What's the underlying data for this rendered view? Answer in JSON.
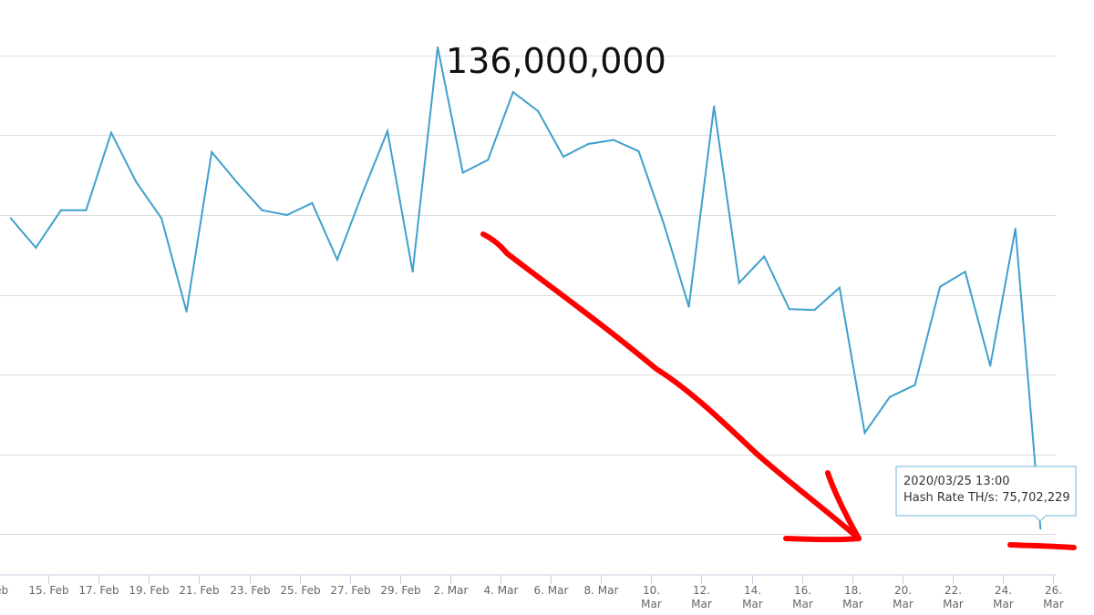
{
  "annotation": {
    "peak_label": "136,000,000"
  },
  "tooltip": {
    "date": "2020/03/25 13:00",
    "series_label": "Hash Rate TH/s",
    "value_text": "75,702,229"
  },
  "colors": {
    "line": "#3fa0cc",
    "grid": "#dcdcdc",
    "marker": "#ff0000",
    "tooltip_border": "#6fb6d8"
  },
  "chart_data": {
    "type": "line",
    "title": "",
    "xlabel": "",
    "ylabel": "",
    "x_ticks": [
      "Feb",
      "15. Feb",
      "17. Feb",
      "19. Feb",
      "21. Feb",
      "23. Feb",
      "25. Feb",
      "27. Feb",
      "29. Feb",
      "2. Mar",
      "4. Mar",
      "6. Mar",
      "8. Mar",
      "10. Mar",
      "12. Mar",
      "14. Mar",
      "16. Mar",
      "18. Mar",
      "20. Mar",
      "22. Mar",
      "24. Mar",
      "26. Mar"
    ],
    "x_tick_dates": [
      "2020-02-13",
      "2020-02-15",
      "2020-02-17",
      "2020-02-19",
      "2020-02-21",
      "2020-02-23",
      "2020-02-25",
      "2020-02-27",
      "2020-02-29",
      "2020-03-02",
      "2020-03-04",
      "2020-03-06",
      "2020-03-08",
      "2020-03-10",
      "2020-03-12",
      "2020-03-14",
      "2020-03-16",
      "2020-03-18",
      "2020-03-20",
      "2020-03-22",
      "2020-03-24",
      "2020-03-26"
    ],
    "ylim": [
      70000000,
      140000000
    ],
    "y_gridlines": [
      75000000,
      85000000,
      95000000,
      105000000,
      115000000,
      125000000,
      135000000,
      145000000
    ],
    "grid": true,
    "legend": "none",
    "series": [
      {
        "x": [
          "2020-02-13",
          "2020-02-14",
          "2020-02-15",
          "2020-02-16",
          "2020-02-17",
          "2020-02-18",
          "2020-02-19",
          "2020-02-20",
          "2020-02-21",
          "2020-02-22",
          "2020-02-23",
          "2020-02-24",
          "2020-02-25",
          "2020-02-26",
          "2020-02-27",
          "2020-02-28",
          "2020-02-29",
          "2020-03-01",
          "2020-03-02",
          "2020-03-03",
          "2020-03-04",
          "2020-03-05",
          "2020-03-06",
          "2020-03-07",
          "2020-03-08",
          "2020-03-09",
          "2020-03-10",
          "2020-03-11",
          "2020-03-12",
          "2020-03-13",
          "2020-03-14",
          "2020-03-15",
          "2020-03-16",
          "2020-03-17",
          "2020-03-18",
          "2020-03-19",
          "2020-03-20",
          "2020-03-21",
          "2020-03-22",
          "2020-03-23",
          "2020-03-24",
          "2020-03-25"
        ],
        "values": [
          114600000,
          110900000,
          115600000,
          115600000,
          125300000,
          119100000,
          114600000,
          102900000,
          122900000,
          119100000,
          115600000,
          115000000,
          116500000,
          109400000,
          117700000,
          125500000,
          107900000,
          136000000,
          120300000,
          121900000,
          130400000,
          128000000,
          122300000,
          123900000,
          124400000,
          123000000,
          113900000,
          103500000,
          128600000,
          106500000,
          109800000,
          103200000,
          103100000,
          105900000,
          87700000,
          92200000,
          93700000,
          106000000,
          107900000,
          96100000,
          113300000,
          75702229
        ]
      }
    ]
  }
}
